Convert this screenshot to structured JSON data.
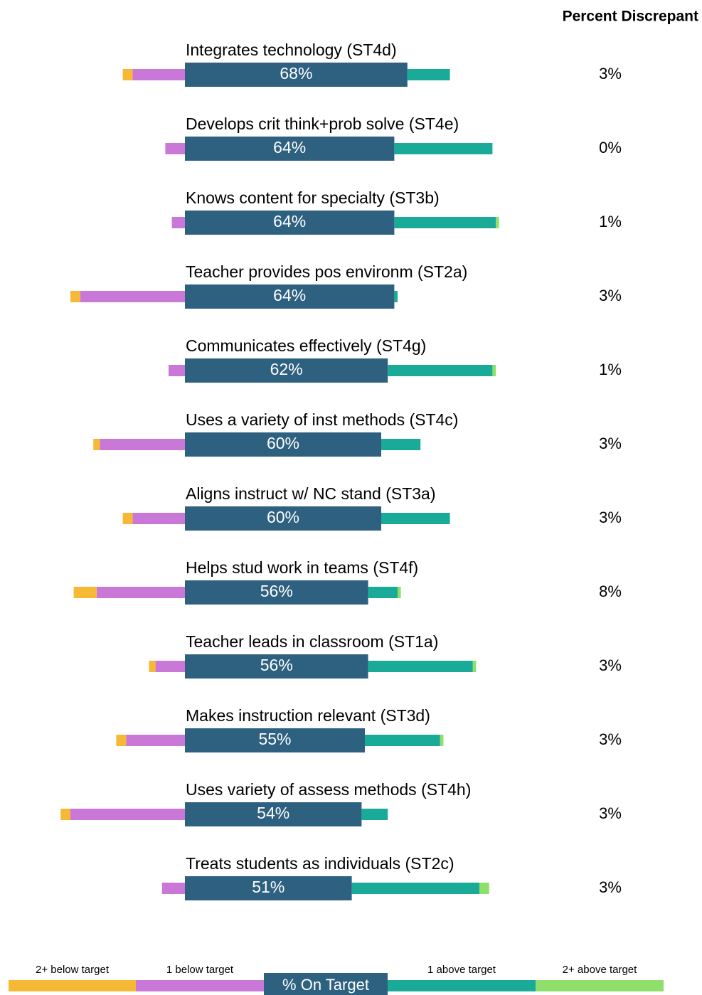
{
  "chart_data": {
    "type": "diverging-bar",
    "categories": [
      "Integrates technology (ST4d)",
      "Develops crit think+prob solve (ST4e)",
      "Knows content for specialty (ST3b)",
      "Teacher provides pos environm (ST2a)",
      "Communicates effectively (ST4g)",
      "Uses a variety of inst methods (ST4c)",
      "Aligns instruct w/ NC stand (ST3a)",
      "Helps stud work in teams (ST4f)",
      "Teacher leads in classroom (ST1a)",
      "Makes instruction relevant (ST3d)",
      "Uses variety of assess methods (ST4h)",
      "Treats students as individuals (ST2c)"
    ],
    "series": [
      {
        "name": "2+ below target",
        "color": "#f6b935",
        "side": "below",
        "values": [
          3,
          0,
          0,
          3,
          0,
          2,
          3,
          7,
          2,
          3,
          3,
          0
        ]
      },
      {
        "name": "1 below target",
        "color": "#c978d8",
        "side": "below",
        "values": [
          16,
          6,
          4,
          32,
          5,
          26,
          16,
          27,
          9,
          18,
          35,
          7
        ]
      },
      {
        "name": "% On Target",
        "color": "#2e6080",
        "side": "on",
        "values": [
          68,
          64,
          64,
          64,
          62,
          60,
          60,
          56,
          56,
          55,
          54,
          51
        ],
        "value_labels": [
          "68%",
          "64%",
          "64%",
          "64%",
          "62%",
          "60%",
          "60%",
          "56%",
          "56%",
          "55%",
          "54%",
          "51%"
        ]
      },
      {
        "name": "1 above target",
        "color": "#1aab98",
        "side": "above",
        "values": [
          13,
          30,
          31,
          1,
          32,
          12,
          21,
          9,
          32,
          23,
          8,
          39
        ]
      },
      {
        "name": "2+ above target",
        "color": "#8fe06a",
        "side": "above",
        "values": [
          0,
          0,
          1,
          0,
          1,
          0,
          0,
          1,
          1,
          1,
          0,
          3
        ]
      }
    ],
    "discrepant": {
      "title": "Percent Discrepant",
      "values": [
        3,
        0,
        1,
        3,
        1,
        3,
        3,
        8,
        3,
        3,
        3,
        3
      ],
      "value_labels": [
        "3%",
        "0%",
        "1%",
        "3%",
        "1%",
        "3%",
        "3%",
        "8%",
        "3%",
        "3%",
        "3%",
        "3%"
      ]
    }
  }
}
